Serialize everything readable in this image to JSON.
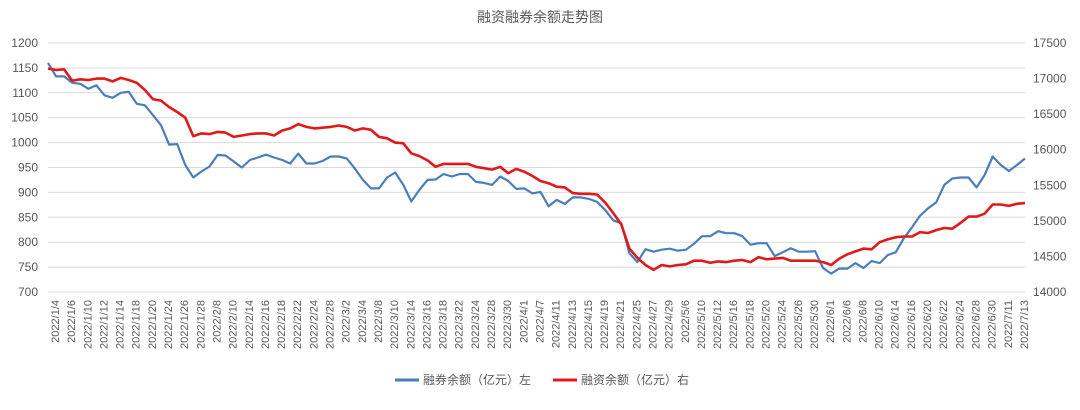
{
  "chart_data": {
    "type": "line",
    "title": "融资融券余额走势图",
    "y_left": {
      "min": 700,
      "max": 1200,
      "step": 50,
      "ticks": [
        "700",
        "750",
        "800",
        "850",
        "900",
        "950",
        "1000",
        "1050",
        "1100",
        "1150",
        "1200"
      ]
    },
    "y_right": {
      "min": 14000,
      "max": 17500,
      "step": 500,
      "ticks": [
        "14000",
        "14500",
        "15000",
        "15500",
        "16000",
        "16500",
        "17000",
        "17500"
      ]
    },
    "x_tick_labels": [
      "2022/1/4",
      "2022/1/6",
      "2022/1/10",
      "2022/1/12",
      "2022/1/14",
      "2022/1/18",
      "2022/1/20",
      "2022/1/24",
      "2022/1/26",
      "2022/1/28",
      "2022/2/8",
      "2022/2/10",
      "2022/2/14",
      "2022/2/16",
      "2022/2/18",
      "2022/2/22",
      "2022/2/24",
      "2022/2/28",
      "2022/3/2",
      "2022/3/4",
      "2022/3/8",
      "2022/3/10",
      "2022/3/14",
      "2022/3/16",
      "2022/3/18",
      "2022/3/22",
      "2022/3/24",
      "2022/3/28",
      "2022/3/30",
      "2022/4/1",
      "2022/4/7",
      "2022/4/11",
      "2022/4/13",
      "2022/4/15",
      "2022/4/19",
      "2022/4/21",
      "2022/4/25",
      "2022/4/27",
      "2022/4/29",
      "2022/5/6",
      "2022/5/10",
      "2022/5/12",
      "2022/5/16",
      "2022/5/18",
      "2022/5/20",
      "2022/5/24",
      "2022/5/26",
      "2022/5/30",
      "2022/6/1",
      "2022/6/6",
      "2022/6/8",
      "2022/6/10",
      "2022/6/14",
      "2022/6/16",
      "2022/6/20",
      "2022/6/22",
      "2022/6/24",
      "2022/6/28",
      "2022/6/30",
      "2022/7/11",
      "2022/7/13"
    ],
    "series": [
      {
        "name": "融券余额（亿元）左",
        "axis": "left",
        "color": "#4a7ebb",
        "values": [
          1160,
          1133,
          1133,
          1120,
          1118,
          1108,
          1115,
          1095,
          1090,
          1100,
          1102,
          1078,
          1075,
          1055,
          1035,
          996,
          997,
          955,
          930,
          942,
          952,
          975,
          974,
          962,
          950,
          965,
          970,
          976,
          970,
          965,
          958,
          978,
          958,
          958,
          963,
          972,
          972,
          968,
          948,
          925,
          908,
          908,
          930,
          940,
          915,
          882,
          905,
          925,
          926,
          937,
          932,
          937,
          937,
          921,
          919,
          915,
          932,
          923,
          907,
          908,
          898,
          901,
          872,
          885,
          877,
          890,
          890,
          887,
          881,
          865,
          844,
          838,
          778,
          760,
          786,
          781,
          785,
          787,
          783,
          785,
          797,
          812,
          812,
          822,
          818,
          818,
          812,
          795,
          798,
          798,
          772,
          780,
          788,
          781,
          781,
          782,
          748,
          737,
          747,
          747,
          758,
          748,
          762,
          758,
          774,
          780,
          808,
          830,
          853,
          868,
          880,
          915,
          928,
          930,
          930,
          910,
          935,
          972,
          955,
          943,
          955,
          968
        ]
      },
      {
        "name": "融资余额（亿元）右",
        "axis": "right",
        "color": "#e0191b",
        "values": [
          17140,
          17120,
          17130,
          16970,
          16990,
          16980,
          17000,
          17000,
          16960,
          17010,
          16980,
          16940,
          16840,
          16710,
          16690,
          16600,
          16530,
          16450,
          16190,
          16230,
          16220,
          16250,
          16240,
          16180,
          16200,
          16220,
          16230,
          16230,
          16200,
          16270,
          16300,
          16360,
          16320,
          16300,
          16310,
          16320,
          16340,
          16320,
          16270,
          16300,
          16280,
          16180,
          16160,
          16100,
          16090,
          15950,
          15910,
          15850,
          15760,
          15800,
          15800,
          15800,
          15800,
          15760,
          15740,
          15720,
          15760,
          15670,
          15730,
          15690,
          15630,
          15560,
          15530,
          15480,
          15470,
          15390,
          15380,
          15380,
          15370,
          15260,
          15110,
          14950,
          14610,
          14480,
          14380,
          14310,
          14380,
          14360,
          14380,
          14390,
          14440,
          14440,
          14410,
          14430,
          14420,
          14440,
          14450,
          14420,
          14490,
          14460,
          14470,
          14480,
          14440,
          14440,
          14440,
          14440,
          14420,
          14380,
          14470,
          14530,
          14570,
          14610,
          14600,
          14700,
          14740,
          14770,
          14780,
          14780,
          14840,
          14830,
          14870,
          14900,
          14890,
          14970,
          15060,
          15060,
          15100,
          15230,
          15230,
          15210,
          15240,
          15250
        ]
      }
    ],
    "legend_position": "bottom",
    "grid": true
  }
}
